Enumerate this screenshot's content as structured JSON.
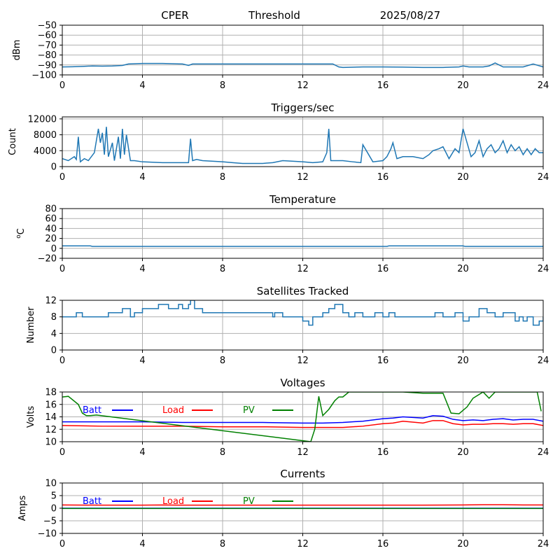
{
  "header": {
    "station": "CPER",
    "mode": "Threshold",
    "date": "2025/08/27"
  },
  "chart_data": [
    {
      "id": "threshold",
      "type": "line",
      "title": "",
      "ylabel": "dBm",
      "xlim": [
        0,
        24
      ],
      "ylim": [
        -100,
        -50
      ],
      "xticks": [
        0,
        4,
        8,
        12,
        16,
        20,
        24
      ],
      "yticks": [
        -100,
        -90,
        -80,
        -70,
        -60,
        -50
      ],
      "grid": true,
      "series": [
        {
          "color": "#1f77b4",
          "x": [
            0,
            0.5,
            1,
            1.5,
            2,
            2.5,
            3,
            3.3,
            4,
            5,
            6,
            6.3,
            6.5,
            7,
            8,
            9,
            10,
            11,
            12,
            13,
            13.5,
            13.8,
            14,
            15,
            16,
            17,
            18,
            19,
            19.8,
            20,
            20.3,
            21,
            21.3,
            21.6,
            22,
            23,
            23.5,
            24
          ],
          "y": [
            -92,
            -91.8,
            -91.5,
            -91,
            -91.2,
            -91,
            -90.5,
            -89,
            -88.5,
            -88.5,
            -89,
            -90.5,
            -89,
            -89,
            -89,
            -89,
            -89,
            -89,
            -89,
            -89,
            -89,
            -92,
            -92.5,
            -92,
            -92,
            -92.2,
            -92.5,
            -92.5,
            -92,
            -91,
            -92,
            -92,
            -91,
            -88,
            -92,
            -92,
            -89,
            -92
          ]
        }
      ]
    },
    {
      "id": "triggers",
      "type": "line",
      "title": "Triggers/sec",
      "ylabel": "Count",
      "xlim": [
        0,
        24
      ],
      "ylim": [
        0,
        12500
      ],
      "xticks": [
        0,
        4,
        8,
        12,
        16,
        20,
        24
      ],
      "yticks": [
        0,
        4000,
        8000,
        12000
      ],
      "ytick_labels": [
        "0",
        "4000",
        "8000",
        "12000"
      ],
      "grid": true,
      "series": [
        {
          "color": "#1f77b4",
          "x": [
            0,
            0.3,
            0.6,
            0.7,
            0.8,
            0.9,
            1.1,
            1.3,
            1.6,
            1.8,
            1.9,
            2,
            2.1,
            2.2,
            2.3,
            2.5,
            2.6,
            2.8,
            2.9,
            3,
            3.1,
            3.2,
            3.4,
            3.6,
            4,
            5,
            6,
            6.3,
            6.4,
            6.5,
            6.7,
            7,
            8,
            8.5,
            9,
            10,
            10.5,
            11,
            12,
            12.5,
            13,
            13.2,
            13.3,
            13.4,
            13.6,
            14,
            14.5,
            14.9,
            15,
            15.5,
            16,
            16.2,
            16.4,
            16.5,
            16.7,
            17,
            17.5,
            18,
            18.3,
            18.5,
            18.8,
            19,
            19.3,
            19.6,
            19.8,
            20,
            20.2,
            20.4,
            20.6,
            20.8,
            21,
            21.2,
            21.4,
            21.6,
            21.8,
            22,
            22.2,
            22.4,
            22.6,
            22.8,
            23,
            23.2,
            23.4,
            23.6,
            23.8,
            24
          ],
          "y": [
            2000,
            1500,
            2500,
            1800,
            7500,
            1200,
            2000,
            1500,
            3500,
            9500,
            6000,
            8500,
            3000,
            10000,
            2500,
            6000,
            1500,
            7500,
            2000,
            9500,
            3000,
            8000,
            1500,
            1500,
            1200,
            1000,
            1000,
            1000,
            7000,
            1500,
            1800,
            1500,
            1200,
            1000,
            800,
            800,
            1000,
            1500,
            1200,
            1000,
            1200,
            3500,
            9500,
            1500,
            1500,
            1500,
            1200,
            1000,
            5500,
            1200,
            1500,
            2500,
            4500,
            6000,
            2000,
            2500,
            2500,
            2000,
            3000,
            4000,
            4500,
            5000,
            2000,
            4500,
            3500,
            9500,
            6000,
            2500,
            3500,
            6500,
            2500,
            4500,
            5500,
            3500,
            4500,
            6500,
            3500,
            5500,
            4000,
            5000,
            3000,
            4500,
            3000,
            4500,
            3500,
            3500
          ]
        }
      ]
    },
    {
      "id": "temperature",
      "type": "line",
      "title": "Temperature",
      "ylabel": "°C",
      "ylabel_parts": [
        "o",
        "C"
      ],
      "xlim": [
        0,
        24
      ],
      "ylim": [
        -20,
        80
      ],
      "xticks": [
        0,
        4,
        8,
        12,
        16,
        20,
        24
      ],
      "yticks": [
        -20,
        0,
        20,
        40,
        60,
        80
      ],
      "grid": true,
      "series": [
        {
          "color": "#1f77b4",
          "x": [
            0,
            1.4,
            1.5,
            16.2,
            16.3,
            20,
            20.1,
            24
          ],
          "y": [
            5,
            5,
            4,
            4,
            5,
            5,
            4,
            4
          ]
        }
      ]
    },
    {
      "id": "satellites",
      "type": "line",
      "title": "Satellites Tracked",
      "ylabel": "Number",
      "xlim": [
        0,
        24
      ],
      "ylim": [
        0,
        12
      ],
      "xticks": [
        0,
        4,
        8,
        12,
        16,
        20,
        24
      ],
      "yticks": [
        0,
        4,
        8,
        12
      ],
      "grid": true,
      "step": true,
      "series": [
        {
          "color": "#1f77b4",
          "x": [
            0,
            0.5,
            0.7,
            1,
            1.3,
            2.3,
            3,
            3.4,
            3.6,
            4,
            4.8,
            5.3,
            5.8,
            6,
            6.3,
            6.4,
            6.6,
            7,
            8,
            9,
            10,
            10.5,
            10.6,
            11,
            12,
            12.3,
            12.5,
            13,
            13.3,
            13.6,
            14,
            14.3,
            14.6,
            15,
            15.6,
            16,
            16.3,
            16.6,
            17,
            18,
            18.6,
            19,
            19.6,
            20,
            20.3,
            20.8,
            21.2,
            21.6,
            22,
            22.6,
            22.8,
            23,
            23.2,
            23.5,
            23.8,
            24
          ],
          "y": [
            8,
            8,
            9,
            8,
            8,
            9,
            10,
            8,
            9,
            10,
            11,
            10,
            11,
            10,
            11,
            12,
            10,
            9,
            9,
            9,
            9,
            8,
            9,
            8,
            7,
            6,
            8,
            9,
            10,
            11,
            9,
            8,
            9,
            8,
            9,
            8,
            9,
            8,
            8,
            8,
            9,
            8,
            9,
            7,
            8,
            10,
            9,
            8,
            9,
            7,
            8,
            7,
            8,
            6,
            7,
            8
          ]
        }
      ]
    },
    {
      "id": "voltages",
      "type": "line",
      "title": "Voltages",
      "ylabel": "Volts",
      "xlim": [
        0,
        24
      ],
      "ylim": [
        10,
        18
      ],
      "xticks": [
        0,
        4,
        8,
        12,
        16,
        20,
        24
      ],
      "yticks": [
        10,
        12,
        14,
        16,
        18
      ],
      "grid": true,
      "legend": "top-left-inline",
      "series": [
        {
          "name": "Batt",
          "color": "#0000ff",
          "x": [
            0,
            2,
            4,
            6,
            8,
            10,
            12,
            13,
            14,
            15,
            16,
            16.5,
            17,
            18,
            18.5,
            19,
            19.5,
            20,
            20.5,
            21,
            21.5,
            22,
            22.5,
            23,
            23.5,
            24
          ],
          "y": [
            13.2,
            13.2,
            13.2,
            13.1,
            13.1,
            13.1,
            13.0,
            13.0,
            13.1,
            13.3,
            13.7,
            13.8,
            14.0,
            13.8,
            14.2,
            14.1,
            13.6,
            13.4,
            13.5,
            13.4,
            13.6,
            13.7,
            13.5,
            13.6,
            13.6,
            13.3
          ]
        },
        {
          "name": "Load",
          "color": "#ff0000",
          "x": [
            0,
            2,
            4,
            6,
            8,
            10,
            12,
            13,
            14,
            15,
            16,
            16.5,
            17,
            18,
            18.5,
            19,
            19.5,
            20,
            20.5,
            21,
            21.5,
            22,
            22.5,
            23,
            23.5,
            24
          ],
          "y": [
            12.6,
            12.5,
            12.5,
            12.5,
            12.4,
            12.4,
            12.3,
            12.3,
            12.3,
            12.5,
            12.9,
            13.0,
            13.3,
            13.0,
            13.4,
            13.4,
            12.9,
            12.7,
            12.8,
            12.8,
            12.9,
            12.9,
            12.8,
            12.9,
            12.9,
            12.6
          ]
        },
        {
          "name": "PV",
          "color": "#008000",
          "x": [
            0,
            0.3,
            0.8,
            1.0,
            1.2,
            1.4,
            1.7,
            12.4,
            12.6,
            12.8,
            13.0,
            13.3,
            13.6,
            13.8,
            14.0,
            14.3,
            14.6,
            15,
            16,
            16.5,
            17,
            18,
            19,
            19.4,
            19.8,
            20.2,
            20.5,
            21,
            21.3,
            21.6,
            22,
            22.5,
            23,
            23.4,
            23.7,
            23.9
          ],
          "y": [
            17.2,
            17.3,
            16,
            14.6,
            14.2,
            14.2,
            14.3,
            10,
            12,
            17.3,
            14.2,
            15.2,
            16.6,
            17.2,
            17.2,
            18,
            18,
            18,
            18,
            18,
            18,
            17.8,
            17.8,
            14.6,
            14.5,
            15.6,
            17,
            18,
            17,
            18,
            18,
            18,
            18,
            18,
            18,
            14.9
          ]
        }
      ]
    },
    {
      "id": "currents",
      "type": "line",
      "title": "Currents",
      "ylabel": "Amps",
      "xlim": [
        0,
        24
      ],
      "ylim": [
        -10,
        10
      ],
      "xticks": [
        0,
        4,
        8,
        12,
        16,
        20,
        24
      ],
      "yticks": [
        -10,
        -5,
        0,
        5,
        10
      ],
      "grid": true,
      "legend": "top-left-inline",
      "series": [
        {
          "name": "Batt",
          "color": "#0000ff",
          "x": [
            0,
            24
          ],
          "y": [
            0,
            0
          ]
        },
        {
          "name": "Load",
          "color": "#ff0000",
          "x": [
            0,
            2,
            4,
            5,
            6,
            8,
            10,
            12,
            14,
            16,
            18,
            20,
            21,
            22,
            23,
            24
          ],
          "y": [
            1.3,
            1.2,
            1.2,
            1.3,
            1.2,
            1.2,
            1.2,
            1.2,
            1.2,
            1.2,
            1.2,
            1.3,
            1.4,
            1.4,
            1.3,
            1.3
          ]
        },
        {
          "name": "PV",
          "color": "#008000",
          "x": [
            0,
            24
          ],
          "y": [
            -0.1,
            -0.1
          ]
        }
      ]
    }
  ]
}
